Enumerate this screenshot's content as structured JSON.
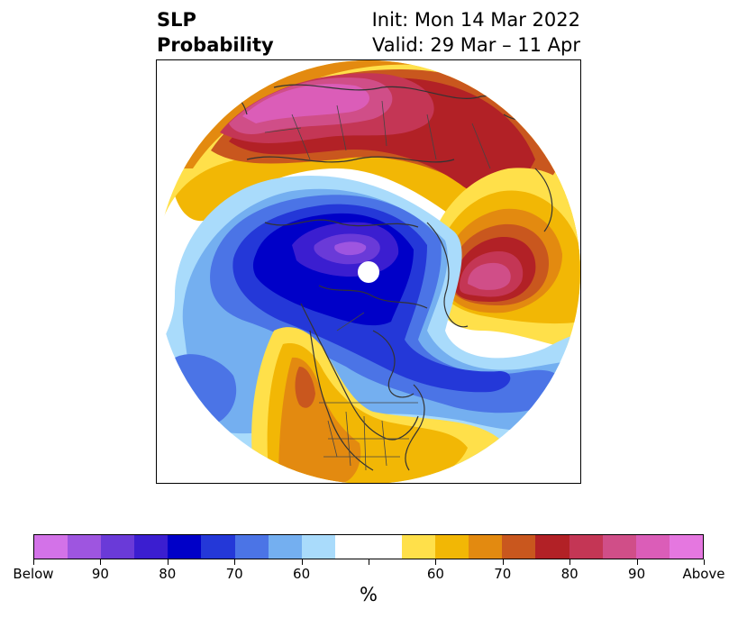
{
  "title": {
    "line1_left": "SLP",
    "line2_left": "Probability",
    "line1_right": "Init: Mon 14 Mar 2022",
    "line2_right": "Valid: 29 Mar – 11 Apr"
  },
  "map": {
    "projection": "north-polar-stereographic",
    "features": [
      "coastlines",
      "country-borders",
      "us-state-borders"
    ]
  },
  "colorbar": {
    "unit": "%",
    "segments": [
      "#d372e8",
      "#9e55e0",
      "#6a3ad8",
      "#3b1ed0",
      "#0000c8",
      "#2438d8",
      "#4b74e6",
      "#74aff0",
      "#a9dbfb",
      "#ffffff",
      "#ffffff",
      "#ffe04a",
      "#f2b705",
      "#e38a10",
      "#c9571e",
      "#b22126",
      "#c43655",
      "#d04e88",
      "#db5db8",
      "#e577e0"
    ],
    "tick_labels": [
      "Below",
      "90",
      "80",
      "70",
      "60",
      "",
      "60",
      "70",
      "80",
      "90",
      "Above"
    ]
  }
}
